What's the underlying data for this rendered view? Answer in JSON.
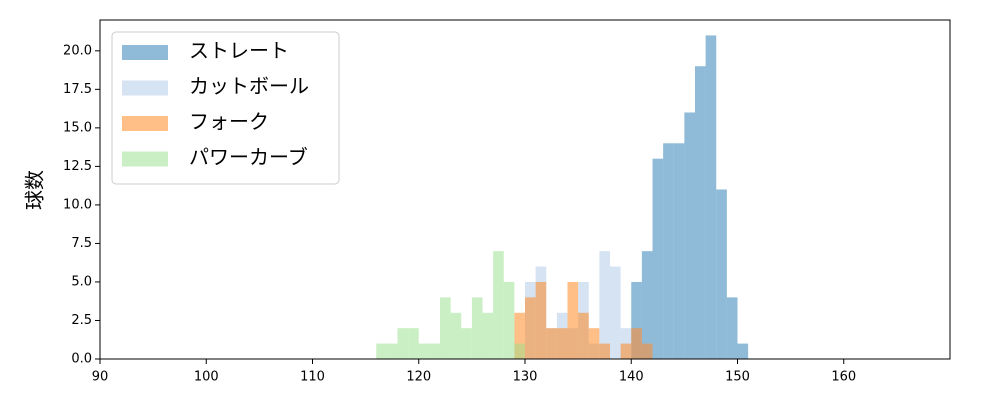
{
  "chart_data": {
    "type": "histogram",
    "ylabel": "球数",
    "xlim": [
      90,
      170
    ],
    "xticks": [
      90,
      100,
      110,
      120,
      130,
      140,
      150,
      160
    ],
    "ylim": [
      0,
      22
    ],
    "yticks": [
      {
        "value": 0,
        "label": "0.0"
      },
      {
        "value": 2.5,
        "label": "2.5"
      },
      {
        "value": 5,
        "label": "5.0"
      },
      {
        "value": 7.5,
        "label": "7.5"
      },
      {
        "value": 10,
        "label": "10.0"
      },
      {
        "value": 12.5,
        "label": "12.5"
      },
      {
        "value": 15,
        "label": "15.0"
      },
      {
        "value": 17.5,
        "label": "17.5"
      },
      {
        "value": 20,
        "label": "20.0"
      }
    ],
    "legend": "upper left",
    "opacity": 0.5,
    "series": [
      {
        "name": "ストレート",
        "color": "#1f77b4",
        "bins": [
          140,
          141,
          142,
          143,
          144,
          145,
          146,
          147,
          148,
          149,
          150,
          151
        ],
        "values": [
          5,
          7,
          13,
          14,
          14,
          16,
          19,
          21,
          11,
          4,
          1
        ]
      },
      {
        "name": "カットボール",
        "color": "#aec7e8",
        "bins": [
          130,
          131,
          132,
          133,
          134,
          135,
          136,
          137,
          138,
          139,
          140,
          141,
          142
        ],
        "values": [
          5,
          6,
          2,
          3,
          2,
          5,
          1,
          7,
          6,
          2,
          2,
          1
        ]
      },
      {
        "name": "フォーク",
        "color": "#ff7f0e",
        "bins": [
          129,
          130,
          131,
          132,
          133,
          134,
          135,
          136,
          137,
          138,
          139,
          140,
          141,
          142
        ],
        "values": [
          3,
          4,
          5,
          2,
          2,
          5,
          3,
          2,
          1,
          0,
          1,
          2,
          1
        ]
      },
      {
        "name": "パワーカーブ",
        "color": "#98df8a",
        "bins": [
          116,
          117,
          118,
          119,
          120,
          121,
          122,
          123,
          124,
          125,
          126,
          127,
          128,
          129,
          130
        ],
        "values": [
          1,
          1,
          2,
          2,
          1,
          1,
          4,
          3,
          2,
          4,
          3,
          7,
          5,
          1
        ]
      }
    ]
  }
}
